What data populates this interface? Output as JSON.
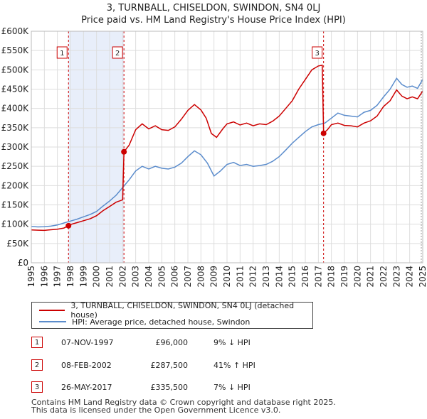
{
  "header": {
    "title": "3, TURNBALL, CHISELDON, SWINDON, SN4 0LJ",
    "subtitle": "Price paid vs. HM Land Registry's House Price Index (HPI)"
  },
  "colors": {
    "property": "#cc0000",
    "hpi": "#5b8ccc",
    "sale_shade": "#e8eefa",
    "grid": "#dddddd"
  },
  "chart_data": {
    "type": "line",
    "xlim": [
      1995,
      2025
    ],
    "ylim": [
      0,
      600000
    ],
    "x_ticks": [
      "1995",
      "1996",
      "1997",
      "1998",
      "1999",
      "2000",
      "2001",
      "2002",
      "2003",
      "2004",
      "2005",
      "2006",
      "2007",
      "2008",
      "2009",
      "2010",
      "2011",
      "2012",
      "2013",
      "2014",
      "2015",
      "2016",
      "2017",
      "2018",
      "2019",
      "2020",
      "2021",
      "2022",
      "2023",
      "2024",
      "2025"
    ],
    "y_ticks": [
      {
        "v": 0,
        "label": "£0"
      },
      {
        "v": 50000,
        "label": "£50K"
      },
      {
        "v": 100000,
        "label": "£100K"
      },
      {
        "v": 150000,
        "label": "£150K"
      },
      {
        "v": 200000,
        "label": "£200K"
      },
      {
        "v": 250000,
        "label": "£250K"
      },
      {
        "v": 300000,
        "label": "£300K"
      },
      {
        "v": 350000,
        "label": "£350K"
      },
      {
        "v": 400000,
        "label": "£400K"
      },
      {
        "v": 450000,
        "label": "£450K"
      },
      {
        "v": 500000,
        "label": "£500K"
      },
      {
        "v": 550000,
        "label": "£550K"
      },
      {
        "v": 600000,
        "label": "£600K"
      }
    ],
    "series": [
      {
        "name": "3, TURNBALL, CHISELDON, SWINDON, SN4 0LJ (detached house)",
        "color": "#cc0000",
        "points": [
          [
            1995.0,
            85000
          ],
          [
            1995.5,
            84500
          ],
          [
            1996.0,
            84000
          ],
          [
            1996.5,
            85500
          ],
          [
            1997.0,
            87000
          ],
          [
            1997.5,
            90000
          ],
          [
            1997.85,
            96000
          ],
          [
            1998.0,
            99000
          ],
          [
            1998.5,
            104000
          ],
          [
            1999.0,
            109000
          ],
          [
            1999.5,
            114000
          ],
          [
            2000.0,
            122000
          ],
          [
            2000.5,
            135000
          ],
          [
            2001.0,
            146000
          ],
          [
            2001.5,
            157000
          ],
          [
            2002.0,
            163000
          ],
          [
            2002.1,
            287500
          ],
          [
            2002.5,
            305000
          ],
          [
            2003.0,
            345000
          ],
          [
            2003.5,
            360000
          ],
          [
            2004.0,
            347000
          ],
          [
            2004.5,
            355000
          ],
          [
            2005.0,
            345000
          ],
          [
            2005.5,
            343000
          ],
          [
            2006.0,
            352000
          ],
          [
            2006.5,
            372000
          ],
          [
            2007.0,
            395000
          ],
          [
            2007.5,
            410000
          ],
          [
            2008.0,
            396000
          ],
          [
            2008.4,
            375000
          ],
          [
            2008.8,
            335000
          ],
          [
            2009.2,
            325000
          ],
          [
            2009.7,
            348000
          ],
          [
            2010.0,
            360000
          ],
          [
            2010.5,
            365000
          ],
          [
            2011.0,
            357000
          ],
          [
            2011.5,
            362000
          ],
          [
            2012.0,
            355000
          ],
          [
            2012.5,
            360000
          ],
          [
            2013.0,
            358000
          ],
          [
            2013.5,
            367000
          ],
          [
            2014.0,
            380000
          ],
          [
            2014.5,
            400000
          ],
          [
            2015.0,
            420000
          ],
          [
            2015.5,
            450000
          ],
          [
            2016.0,
            475000
          ],
          [
            2016.5,
            500000
          ],
          [
            2017.0,
            510000
          ],
          [
            2017.3,
            512000
          ],
          [
            2017.4,
            335500
          ],
          [
            2017.7,
            345000
          ],
          [
            2018.0,
            358000
          ],
          [
            2018.5,
            362000
          ],
          [
            2019.0,
            356000
          ],
          [
            2019.5,
            355000
          ],
          [
            2020.0,
            352000
          ],
          [
            2020.5,
            362000
          ],
          [
            2021.0,
            368000
          ],
          [
            2021.5,
            380000
          ],
          [
            2022.0,
            405000
          ],
          [
            2022.5,
            420000
          ],
          [
            2023.0,
            448000
          ],
          [
            2023.4,
            432000
          ],
          [
            2023.8,
            425000
          ],
          [
            2024.2,
            430000
          ],
          [
            2024.6,
            425000
          ],
          [
            2025.0,
            445000
          ]
        ]
      },
      {
        "name": "HPI: Average price, detached house, Swindon",
        "color": "#5b8ccc",
        "points": [
          [
            1995.0,
            94000
          ],
          [
            1995.5,
            93000
          ],
          [
            1996.0,
            93500
          ],
          [
            1996.5,
            95000
          ],
          [
            1997.0,
            98000
          ],
          [
            1997.5,
            103000
          ],
          [
            1998.0,
            108000
          ],
          [
            1998.5,
            113000
          ],
          [
            1999.0,
            119000
          ],
          [
            1999.5,
            125000
          ],
          [
            2000.0,
            133000
          ],
          [
            2000.5,
            147000
          ],
          [
            2001.0,
            160000
          ],
          [
            2001.5,
            175000
          ],
          [
            2002.0,
            195000
          ],
          [
            2002.5,
            215000
          ],
          [
            2003.0,
            238000
          ],
          [
            2003.5,
            250000
          ],
          [
            2004.0,
            243000
          ],
          [
            2004.5,
            250000
          ],
          [
            2005.0,
            245000
          ],
          [
            2005.5,
            243000
          ],
          [
            2006.0,
            248000
          ],
          [
            2006.5,
            258000
          ],
          [
            2007.0,
            275000
          ],
          [
            2007.5,
            290000
          ],
          [
            2008.0,
            280000
          ],
          [
            2008.5,
            258000
          ],
          [
            2009.0,
            225000
          ],
          [
            2009.5,
            238000
          ],
          [
            2010.0,
            255000
          ],
          [
            2010.5,
            260000
          ],
          [
            2011.0,
            252000
          ],
          [
            2011.5,
            255000
          ],
          [
            2012.0,
            250000
          ],
          [
            2012.5,
            252000
          ],
          [
            2013.0,
            255000
          ],
          [
            2013.5,
            263000
          ],
          [
            2014.0,
            275000
          ],
          [
            2014.5,
            292000
          ],
          [
            2015.0,
            310000
          ],
          [
            2015.5,
            325000
          ],
          [
            2016.0,
            340000
          ],
          [
            2016.5,
            352000
          ],
          [
            2017.0,
            358000
          ],
          [
            2017.5,
            362000
          ],
          [
            2018.0,
            375000
          ],
          [
            2018.5,
            388000
          ],
          [
            2019.0,
            382000
          ],
          [
            2019.5,
            380000
          ],
          [
            2020.0,
            378000
          ],
          [
            2020.5,
            390000
          ],
          [
            2021.0,
            395000
          ],
          [
            2021.5,
            408000
          ],
          [
            2022.0,
            430000
          ],
          [
            2022.5,
            450000
          ],
          [
            2023.0,
            478000
          ],
          [
            2023.4,
            462000
          ],
          [
            2023.8,
            455000
          ],
          [
            2024.2,
            458000
          ],
          [
            2024.6,
            452000
          ],
          [
            2025.0,
            475000
          ]
        ]
      }
    ],
    "sales": [
      {
        "label": "1",
        "x": 1997.85,
        "price": 96000
      },
      {
        "label": "2",
        "x": 2002.1,
        "price": 287500
      },
      {
        "label": "3",
        "x": 2017.4,
        "price": 335500
      }
    ],
    "shaded_ranges": [
      [
        1997.85,
        2002.1
      ]
    ]
  },
  "legend": {
    "property": "3, TURNBALL, CHISELDON, SWINDON, SN4 0LJ (detached house)",
    "hpi": "HPI: Average price, detached house, Swindon"
  },
  "transactions": [
    {
      "num": "1",
      "date": "07-NOV-1997",
      "price": "£96,000",
      "hpi": "9% ↓ HPI"
    },
    {
      "num": "2",
      "date": "08-FEB-2002",
      "price": "£287,500",
      "hpi": "41% ↑ HPI"
    },
    {
      "num": "3",
      "date": "26-MAY-2017",
      "price": "£335,500",
      "hpi": "7% ↓ HPI"
    }
  ],
  "footer": {
    "line1": "Contains HM Land Registry data © Crown copyright and database right 2025.",
    "line2": "This data is licensed under the Open Government Licence v3.0."
  }
}
